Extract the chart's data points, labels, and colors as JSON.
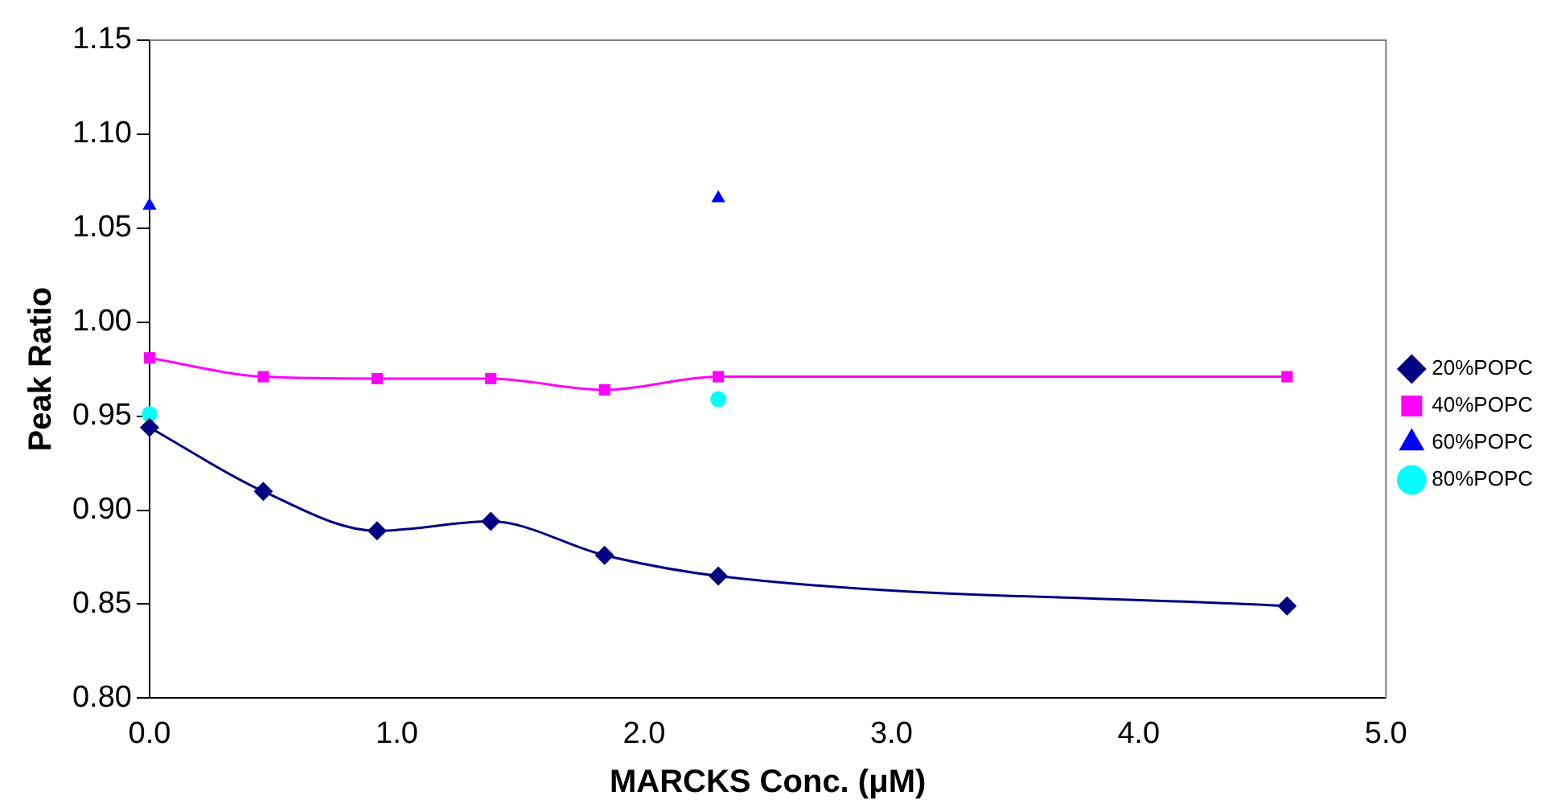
{
  "chart_data": {
    "type": "line",
    "xlabel": "MARCKS Conc. (μM)",
    "ylabel": "Peak Ratio",
    "x": [
      0,
      0.46,
      0.92,
      1.38,
      1.84,
      2.3,
      4.6
    ],
    "series": [
      {
        "name": "20%POPC",
        "color": "#000080",
        "marker": "diamond",
        "values": [
          0.944,
          0.91,
          0.889,
          0.894,
          0.876,
          0.865,
          0.849
        ]
      },
      {
        "name": "40%POPC",
        "color": "#ff00ff",
        "marker": "square",
        "values": [
          0.981,
          0.971,
          0.97,
          0.97,
          0.964,
          0.971,
          0.971
        ]
      },
      {
        "name": "60%POPC",
        "type": "scatter",
        "color": "#0000ff",
        "marker": "triangle",
        "values": [
          1.062,
          null,
          null,
          null,
          null,
          1.066,
          null
        ]
      },
      {
        "name": "80%POPC",
        "type": "scatter",
        "color": "#00ffff",
        "marker": "circle",
        "values": [
          0.951,
          null,
          null,
          null,
          null,
          0.959,
          null
        ]
      }
    ],
    "xlim": [
      0,
      5
    ],
    "xticks": [
      {
        "value": 0,
        "label": "0.0"
      },
      {
        "value": 1,
        "label": "1.0"
      },
      {
        "value": 2,
        "label": "2.0"
      },
      {
        "value": 3,
        "label": "3.0"
      },
      {
        "value": 4,
        "label": "4.0"
      },
      {
        "value": 5,
        "label": "5.0"
      }
    ],
    "ylim": [
      0.8,
      1.15
    ],
    "yticks": [
      {
        "value": 0.8,
        "label": "0.80"
      },
      {
        "value": 0.85,
        "label": "0.85"
      },
      {
        "value": 0.9,
        "label": "0.90"
      },
      {
        "value": 0.95,
        "label": "0.95"
      },
      {
        "value": 1,
        "label": "1.00"
      },
      {
        "value": 1.05,
        "label": "1.05"
      },
      {
        "value": 1.1,
        "label": "1.10"
      },
      {
        "value": 1.15,
        "label": "1.15"
      }
    ],
    "grid": false,
    "legend": "right"
  }
}
